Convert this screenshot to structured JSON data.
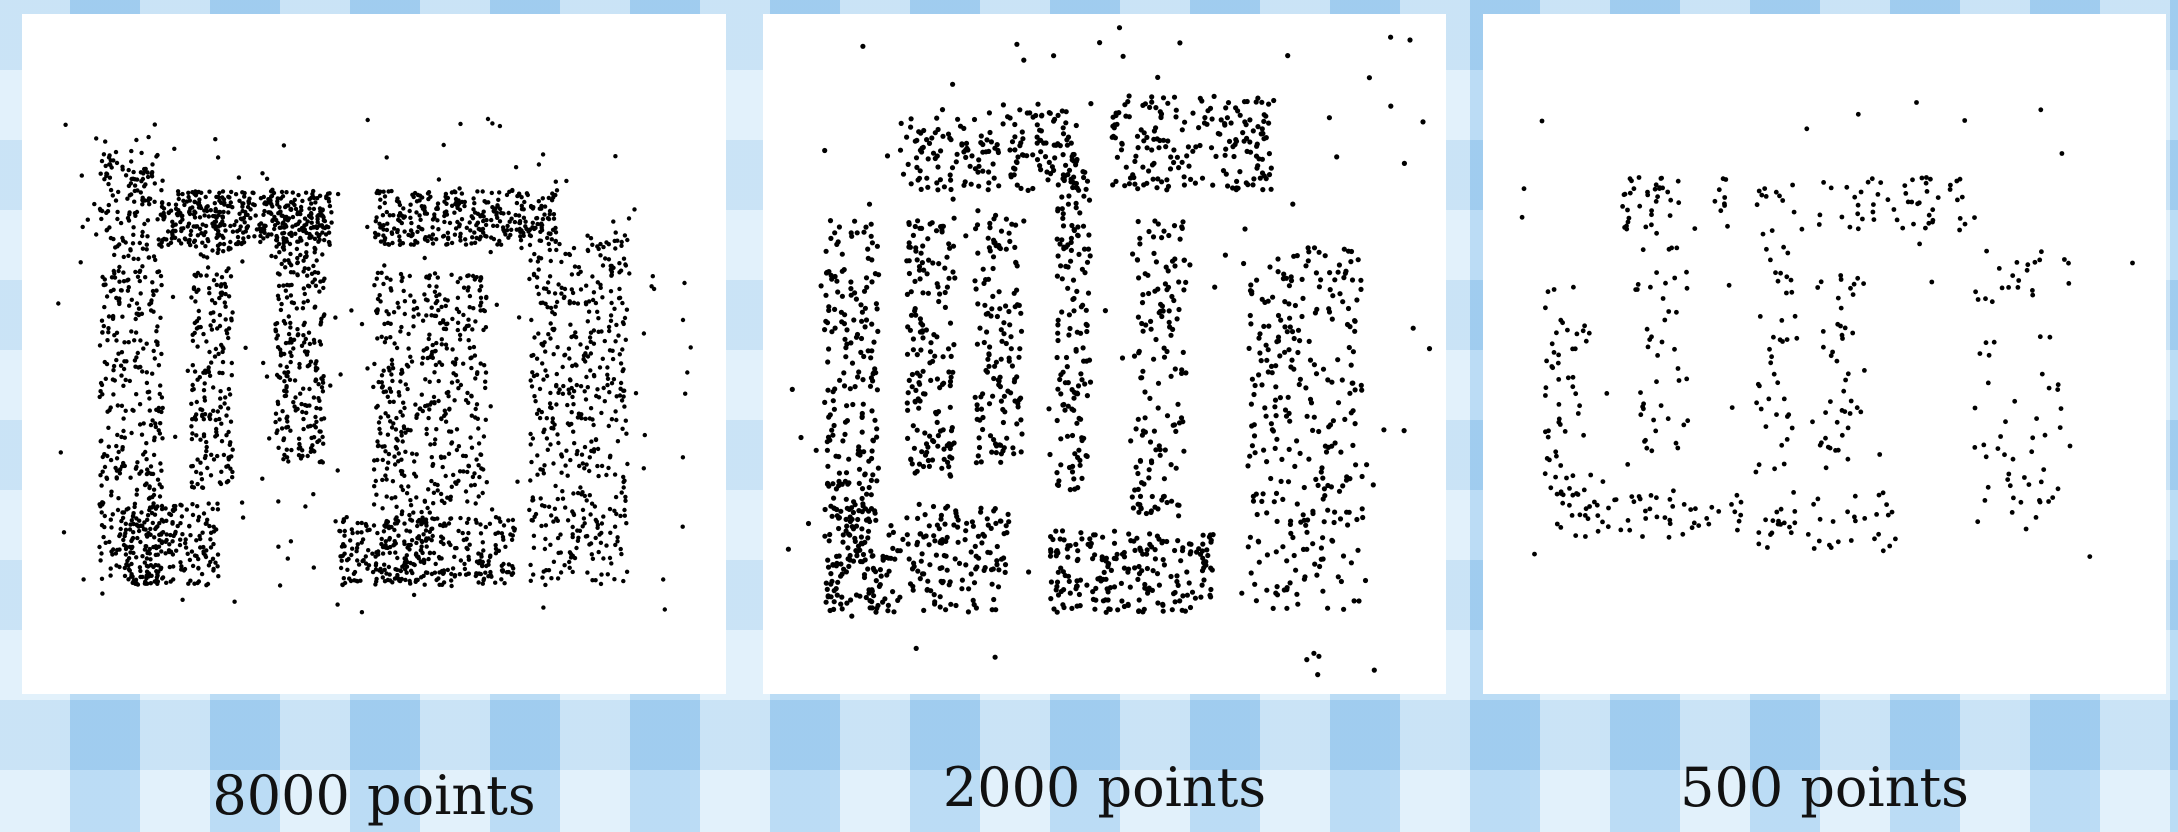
{
  "captions": {
    "panel_1": "8000 points",
    "panel_2": "2000 points",
    "panel_3": "500 points"
  },
  "colors": {
    "point": "#000000",
    "panel_background": "#ffffff",
    "page_background": "#bfe0f6"
  },
  "chart_data": [
    {
      "type": "scatter",
      "title": "",
      "point_count": 8000,
      "caption": "8000 points",
      "xlabel": "",
      "ylabel": "",
      "axes_visible": false,
      "grid": false,
      "density_regions": [
        {
          "x": [
            0.11,
            0.2
          ],
          "y": [
            0.2,
            0.84
          ],
          "weight": 14
        },
        {
          "x": [
            0.15,
            0.28
          ],
          "y": [
            0.72,
            0.84
          ],
          "weight": 6
        },
        {
          "x": [
            0.2,
            0.44
          ],
          "y": [
            0.26,
            0.34
          ],
          "weight": 10
        },
        {
          "x": [
            0.24,
            0.3
          ],
          "y": [
            0.26,
            0.7
          ],
          "weight": 7
        },
        {
          "x": [
            0.36,
            0.43
          ],
          "y": [
            0.26,
            0.66
          ],
          "weight": 9
        },
        {
          "x": [
            0.5,
            0.58
          ],
          "y": [
            0.38,
            0.84
          ],
          "weight": 8
        },
        {
          "x": [
            0.5,
            0.76
          ],
          "y": [
            0.26,
            0.34
          ],
          "weight": 10
        },
        {
          "x": [
            0.45,
            0.7
          ],
          "y": [
            0.74,
            0.84
          ],
          "weight": 9
        },
        {
          "x": [
            0.58,
            0.66
          ],
          "y": [
            0.38,
            0.72
          ],
          "weight": 6
        },
        {
          "x": [
            0.72,
            0.86
          ],
          "y": [
            0.32,
            0.84
          ],
          "weight": 14
        },
        {
          "x": [
            0.05,
            0.95
          ],
          "y": [
            0.15,
            0.88
          ],
          "weight": 6
        }
      ]
    },
    {
      "type": "scatter",
      "title": "",
      "point_count": 2000,
      "caption": "2000 points",
      "xlabel": "",
      "ylabel": "",
      "axes_visible": false,
      "grid": false,
      "density_regions": [
        {
          "x": [
            0.09,
            0.17
          ],
          "y": [
            0.3,
            0.88
          ],
          "weight": 10
        },
        {
          "x": [
            0.09,
            0.36
          ],
          "y": [
            0.72,
            0.88
          ],
          "weight": 10
        },
        {
          "x": [
            0.2,
            0.46
          ],
          "y": [
            0.14,
            0.26
          ],
          "weight": 8
        },
        {
          "x": [
            0.21,
            0.28
          ],
          "y": [
            0.3,
            0.68
          ],
          "weight": 7
        },
        {
          "x": [
            0.31,
            0.38
          ],
          "y": [
            0.3,
            0.66
          ],
          "weight": 6
        },
        {
          "x": [
            0.43,
            0.48
          ],
          "y": [
            0.22,
            0.7
          ],
          "weight": 6
        },
        {
          "x": [
            0.42,
            0.66
          ],
          "y": [
            0.76,
            0.88
          ],
          "weight": 9
        },
        {
          "x": [
            0.51,
            0.75
          ],
          "y": [
            0.12,
            0.26
          ],
          "weight": 8
        },
        {
          "x": [
            0.54,
            0.62
          ],
          "y": [
            0.3,
            0.74
          ],
          "weight": 6
        },
        {
          "x": [
            0.71,
            0.88
          ],
          "y": [
            0.34,
            0.88
          ],
          "weight": 12
        },
        {
          "x": [
            0.02,
            0.98
          ],
          "y": [
            0.01,
            0.98
          ],
          "weight": 5
        }
      ]
    },
    {
      "type": "scatter",
      "title": "",
      "point_count": 500,
      "caption": "500 points",
      "xlabel": "",
      "ylabel": "",
      "axes_visible": false,
      "grid": false,
      "density_regions": [
        {
          "x": [
            0.09,
            0.16
          ],
          "y": [
            0.4,
            0.74
          ],
          "weight": 8
        },
        {
          "x": [
            0.1,
            0.38
          ],
          "y": [
            0.7,
            0.77
          ],
          "weight": 8
        },
        {
          "x": [
            0.2,
            0.36
          ],
          "y": [
            0.24,
            0.32
          ],
          "weight": 6
        },
        {
          "x": [
            0.22,
            0.3
          ],
          "y": [
            0.32,
            0.66
          ],
          "weight": 6
        },
        {
          "x": [
            0.4,
            0.46
          ],
          "y": [
            0.24,
            0.7
          ],
          "weight": 7
        },
        {
          "x": [
            0.4,
            0.62
          ],
          "y": [
            0.7,
            0.79
          ],
          "weight": 6
        },
        {
          "x": [
            0.49,
            0.72
          ],
          "y": [
            0.24,
            0.32
          ],
          "weight": 7
        },
        {
          "x": [
            0.49,
            0.56
          ],
          "y": [
            0.38,
            0.68
          ],
          "weight": 6
        },
        {
          "x": [
            0.72,
            0.86
          ],
          "y": [
            0.34,
            0.76
          ],
          "weight": 9
        },
        {
          "x": [
            0.03,
            0.97
          ],
          "y": [
            0.12,
            0.84
          ],
          "weight": 4
        }
      ]
    }
  ]
}
